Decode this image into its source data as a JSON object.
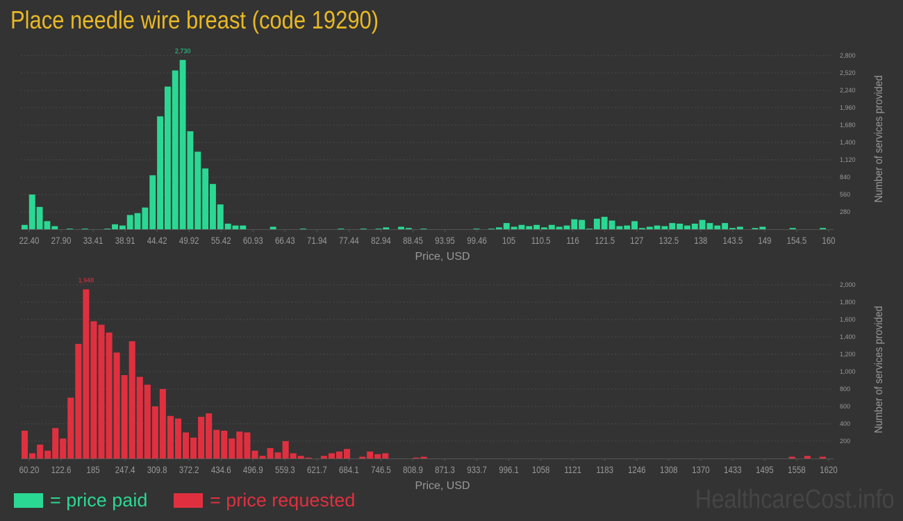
{
  "title": "Place needle wire breast (code 19290)",
  "colors": {
    "background": "#333333",
    "title": "#e8b825",
    "paid": "#2bd893",
    "requested": "#e0303f",
    "axis_text": "#999999",
    "grid": "#4a4a4a"
  },
  "legend": {
    "paid_label": "= price paid",
    "requested_label": "= price requested"
  },
  "watermark": "HealthcareCost.info",
  "chart_data": [
    {
      "id": "paid",
      "type": "bar",
      "color": "#2bd893",
      "xlabel": "Price, USD",
      "ylabel": "Number of services provided",
      "peak_label": "2,730",
      "ylim": [
        0,
        2800
      ],
      "y_ticks": [
        "280",
        "560",
        "840",
        "1,120",
        "1,400",
        "1,680",
        "1,960",
        "2,240",
        "2,520",
        "2,800"
      ],
      "x_ticks": [
        "22.40",
        "27.90",
        "33.41",
        "38.91",
        "44.42",
        "49.92",
        "55.42",
        "60.93",
        "66.43",
        "71.94",
        "77.44",
        "82.94",
        "88.45",
        "93.95",
        "99.46",
        "105",
        "110.5",
        "116",
        "121.5",
        "127",
        "132.5",
        "138",
        "143.5",
        "149",
        "154.5",
        "160"
      ],
      "values": [
        70,
        560,
        360,
        130,
        50,
        0,
        10,
        0,
        10,
        0,
        0,
        10,
        80,
        60,
        230,
        260,
        350,
        870,
        1820,
        2300,
        2560,
        2730,
        1580,
        1250,
        980,
        730,
        400,
        90,
        60,
        60,
        0,
        0,
        0,
        40,
        0,
        0,
        0,
        10,
        0,
        0,
        0,
        0,
        10,
        0,
        0,
        10,
        0,
        10,
        30,
        0,
        40,
        20,
        0,
        10,
        0,
        0,
        0,
        0,
        0,
        0,
        10,
        0,
        10,
        30,
        100,
        40,
        70,
        50,
        70,
        30,
        70,
        40,
        60,
        160,
        150,
        10,
        170,
        200,
        140,
        50,
        60,
        130,
        20,
        40,
        60,
        50,
        100,
        90,
        60,
        90,
        150,
        100,
        60,
        100,
        20,
        40,
        0,
        20,
        40,
        0,
        0,
        0,
        20,
        0,
        0,
        0,
        20
      ]
    },
    {
      "id": "requested",
      "type": "bar",
      "color": "#e0303f",
      "xlabel": "Price, USD",
      "ylabel": "Number of services provided",
      "peak_label": "1,948",
      "ylim": [
        0,
        2000
      ],
      "y_ticks": [
        "200",
        "400",
        "600",
        "800",
        "1,000",
        "1,200",
        "1,400",
        "1,600",
        "1,800",
        "2,000"
      ],
      "x_ticks": [
        "60.20",
        "122.6",
        "185",
        "247.4",
        "309.8",
        "372.2",
        "434.6",
        "496.9",
        "559.3",
        "621.7",
        "684.1",
        "746.5",
        "808.9",
        "871.3",
        "933.7",
        "996.1",
        "1058",
        "1121",
        "1183",
        "1246",
        "1308",
        "1370",
        "1433",
        "1495",
        "1558",
        "1620"
      ],
      "values": [
        320,
        60,
        160,
        90,
        350,
        230,
        700,
        1320,
        1948,
        1580,
        1540,
        1450,
        1220,
        960,
        1350,
        940,
        850,
        600,
        800,
        490,
        460,
        300,
        240,
        480,
        520,
        330,
        320,
        230,
        310,
        300,
        90,
        30,
        120,
        70,
        200,
        60,
        30,
        10,
        0,
        30,
        60,
        80,
        110,
        0,
        20,
        80,
        50,
        60,
        0,
        0,
        0,
        10,
        20,
        0,
        0,
        0,
        0,
        0,
        0,
        0,
        0,
        0,
        0,
        0,
        0,
        0,
        0,
        0,
        0,
        0,
        0,
        0,
        0,
        0,
        0,
        0,
        0,
        0,
        0,
        0,
        0,
        0,
        0,
        0,
        0,
        0,
        0,
        0,
        0,
        0,
        0,
        0,
        0,
        0,
        0,
        0,
        0,
        0,
        0,
        0,
        20,
        0,
        30,
        0,
        20
      ]
    }
  ]
}
